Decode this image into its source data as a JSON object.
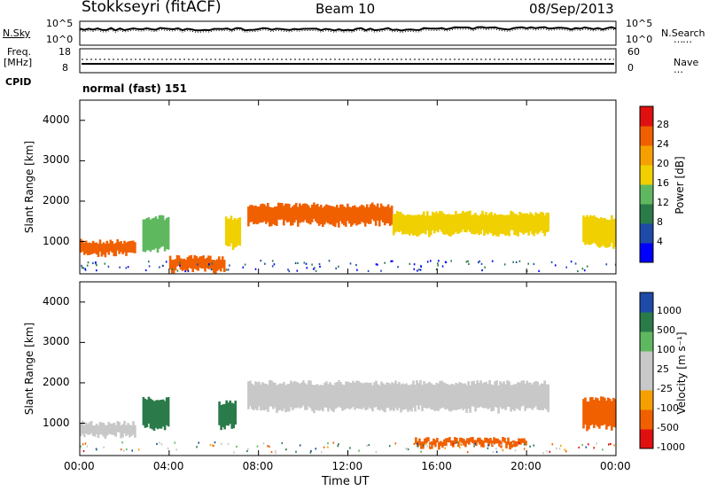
{
  "header": {
    "station": "Stokkseyri (fitACF)",
    "beam": "Beam 10",
    "date": "08/Sep/2013"
  },
  "noise_panel": {
    "left_label": "N.Sky",
    "left_ticks": [
      "10^5",
      "10^0"
    ],
    "right_ticks": [
      "10^5",
      "10^0"
    ],
    "right_label": "N.Search"
  },
  "freq_panel": {
    "left_label_line1": "Freq.",
    "left_label_line2": "[MHz]",
    "left_ticks": [
      "18",
      "8"
    ],
    "right_ticks": [
      "60",
      "0"
    ],
    "right_label": "Nave"
  },
  "cpid": {
    "label": "CPID",
    "value": "normal (fast) 151"
  },
  "x_axis": {
    "label": "Time UT",
    "ticks": [
      "00:00",
      "04:00",
      "08:00",
      "12:00",
      "16:00",
      "20:00",
      "00:00"
    ]
  },
  "colors": {
    "power_scale": [
      "#0000ff",
      "#1f4aa8",
      "#2a7a4a",
      "#5fb85f",
      "#f0d000",
      "#f5a000",
      "#f06000",
      "#e01010"
    ],
    "velocity_scale": [
      "#e01010",
      "#f06000",
      "#f5a000",
      "#c8c8c8",
      "#c8c8c8",
      "#5fb85f",
      "#2a7a4a",
      "#1f4aa8"
    ]
  },
  "chart_data": [
    {
      "type": "heatmap",
      "name": "power",
      "ylabel": "Slant Range [km]",
      "yticks": [
        "1000",
        "2000",
        "3000",
        "4000"
      ],
      "ylim": [
        200,
        4500
      ],
      "xlim": [
        0,
        24
      ],
      "colorbar": {
        "label": "Power [dB]",
        "ticks": [
          "4",
          "8",
          "12",
          "16",
          "20",
          "24",
          "28"
        ]
      },
      "echo_bands": [
        {
          "x": [
            0,
            2.5
          ],
          "range": [
            700,
            1000
          ],
          "value": 26
        },
        {
          "x": [
            2.8,
            4.0
          ],
          "range": [
            800,
            1600
          ],
          "value": 14
        },
        {
          "x": [
            4.0,
            6.5
          ],
          "range": [
            300,
            600
          ],
          "value": 24
        },
        {
          "x": [
            6.5,
            7.2
          ],
          "range": [
            900,
            1600
          ],
          "value": 18
        },
        {
          "x": [
            7.5,
            14
          ],
          "range": [
            1450,
            1900
          ],
          "value": 24
        },
        {
          "x": [
            14,
            21
          ],
          "range": [
            1200,
            1700
          ],
          "value": 16
        },
        {
          "x": [
            22.5,
            24
          ],
          "range": [
            900,
            1600
          ],
          "value": 18
        }
      ]
    },
    {
      "type": "heatmap",
      "name": "velocity",
      "ylabel": "Slant Range [km]",
      "yticks": [
        "1000",
        "2000",
        "3000",
        "4000"
      ],
      "ylim": [
        200,
        4500
      ],
      "xlim": [
        0,
        24
      ],
      "colorbar": {
        "label": "Velocity [m s⁻¹]",
        "ticks": [
          "1000",
          "500",
          "100",
          "25",
          "-25",
          "-100",
          "-500",
          "-1000"
        ]
      },
      "echo_bands": [
        {
          "x": [
            0,
            2.5
          ],
          "range": [
            700,
            1000
          ],
          "value": 0
        },
        {
          "x": [
            2.8,
            4.0
          ],
          "range": [
            900,
            1600
          ],
          "value": 500
        },
        {
          "x": [
            6.2,
            7.0
          ],
          "range": [
            900,
            1500
          ],
          "value": 400
        },
        {
          "x": [
            7.5,
            21
          ],
          "range": [
            1350,
            2000
          ],
          "value": 0
        },
        {
          "x": [
            15,
            20
          ],
          "range": [
            450,
            600
          ],
          "value": -300
        },
        {
          "x": [
            22.5,
            24
          ],
          "range": [
            900,
            1600
          ],
          "value": -300
        }
      ]
    }
  ]
}
